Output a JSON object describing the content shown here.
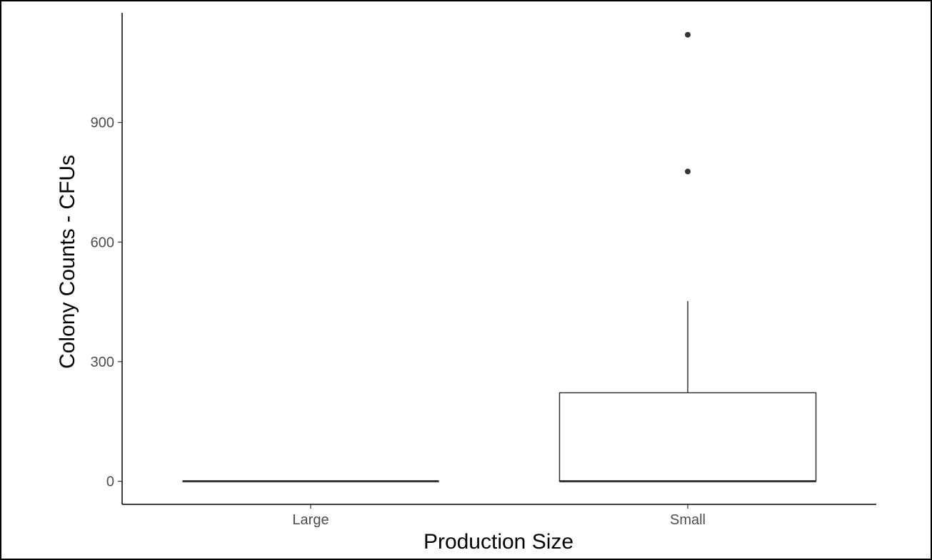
{
  "chart_data": {
    "type": "boxplot",
    "title": "",
    "xlabel": "Production Size",
    "ylabel": "Colony Counts - CFUs",
    "categories": [
      "Large",
      "Small"
    ],
    "boxes": [
      {
        "category": "Large",
        "min": 0,
        "q1": 0,
        "median": 0,
        "q3": 0,
        "max": 0,
        "outliers": []
      },
      {
        "category": "Small",
        "min": 0,
        "q1": 0,
        "median": 0,
        "q3": 222,
        "max": 452,
        "outliers": [
          777,
          1120
        ]
      }
    ],
    "ylim": [
      -58,
      1175
    ],
    "yticks": [
      0,
      300,
      600,
      900
    ],
    "grid": false,
    "legend": "none",
    "colors": {
      "box_line": "#333333",
      "box_fill": "#ffffff",
      "axis": "#000000",
      "tick_text": "#4d4d4d",
      "frame": "#000000"
    }
  }
}
